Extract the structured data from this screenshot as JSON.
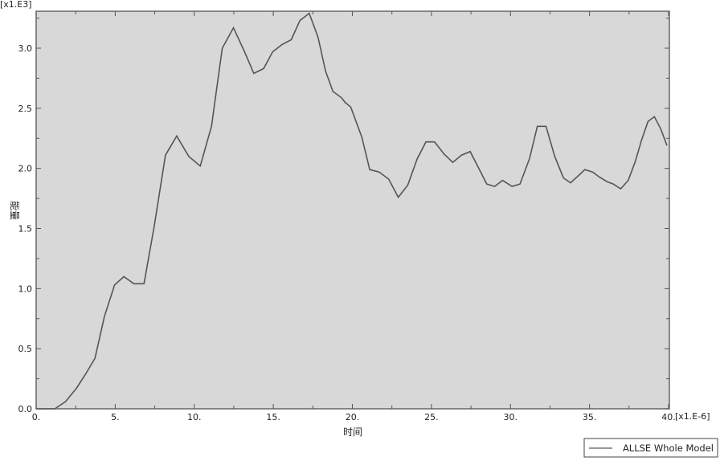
{
  "chart_data": {
    "type": "line",
    "title": "",
    "xlabel": "时间",
    "ylabel": "能量",
    "x_multiplier": "[x1.E-6]",
    "y_multiplier": "[x1.E3]",
    "xlim": [
      0,
      40
    ],
    "ylim": [
      0,
      3.3
    ],
    "x_ticks": [
      0,
      5,
      10,
      15,
      20,
      25,
      30,
      35,
      40
    ],
    "x_tick_labels": [
      "0.",
      "5.",
      "10.",
      "15.",
      "20.",
      "25.",
      "30.",
      "35.",
      "40."
    ],
    "y_ticks": [
      0,
      0.5,
      1.0,
      1.5,
      2.0,
      2.5,
      3.0
    ],
    "y_tick_labels": [
      "0.0",
      "0.5",
      "1.0",
      "1.5",
      "2.0",
      "2.5",
      "3.0"
    ],
    "grid": false,
    "legend_position": "bottom-right",
    "background_color": "#d8d8d8",
    "line_color": "#555555",
    "series": [
      {
        "name": "ALLSE Whole Model",
        "x": [
          0,
          1.18,
          1.86,
          2.54,
          3.13,
          3.72,
          4.32,
          4.96,
          5.55,
          6.18,
          6.82,
          7.48,
          8.18,
          8.89,
          9.65,
          10.38,
          11.09,
          11.77,
          12.48,
          13.15,
          13.77,
          14.39,
          14.96,
          15.55,
          16.13,
          16.68,
          17.27,
          17.83,
          18.3,
          18.77,
          19.3,
          19.54,
          19.9,
          20.6,
          21.1,
          21.7,
          22.3,
          22.9,
          23.5,
          24.1,
          24.65,
          25.2,
          25.8,
          26.35,
          26.9,
          27.45,
          28.0,
          28.5,
          29.0,
          29.5,
          30.1,
          30.6,
          31.2,
          31.7,
          32.25,
          32.8,
          33.35,
          33.8,
          34.3,
          34.7,
          35.2,
          35.6,
          36.1,
          36.5,
          36.97,
          37.45,
          37.9,
          38.3,
          38.7,
          39.1,
          39.5,
          39.9
        ],
        "y": [
          0,
          0,
          0.06,
          0.17,
          0.29,
          0.42,
          0.77,
          1.03,
          1.1,
          1.04,
          1.04,
          1.53,
          2.11,
          2.27,
          2.1,
          2.02,
          2.35,
          3.0,
          3.17,
          2.98,
          2.79,
          2.83,
          2.97,
          3.03,
          3.07,
          3.23,
          3.29,
          3.09,
          2.81,
          2.64,
          2.59,
          2.55,
          2.51,
          2.26,
          1.99,
          1.97,
          1.91,
          1.76,
          1.86,
          2.08,
          2.22,
          2.22,
          2.12,
          2.05,
          2.11,
          2.14,
          2.0,
          1.87,
          1.85,
          1.9,
          1.85,
          1.87,
          2.08,
          2.35,
          2.35,
          2.1,
          1.92,
          1.88,
          1.94,
          1.99,
          1.97,
          1.93,
          1.89,
          1.87,
          1.83,
          1.9,
          2.06,
          2.24,
          2.39,
          2.43,
          2.33,
          2.19
        ]
      }
    ]
  }
}
